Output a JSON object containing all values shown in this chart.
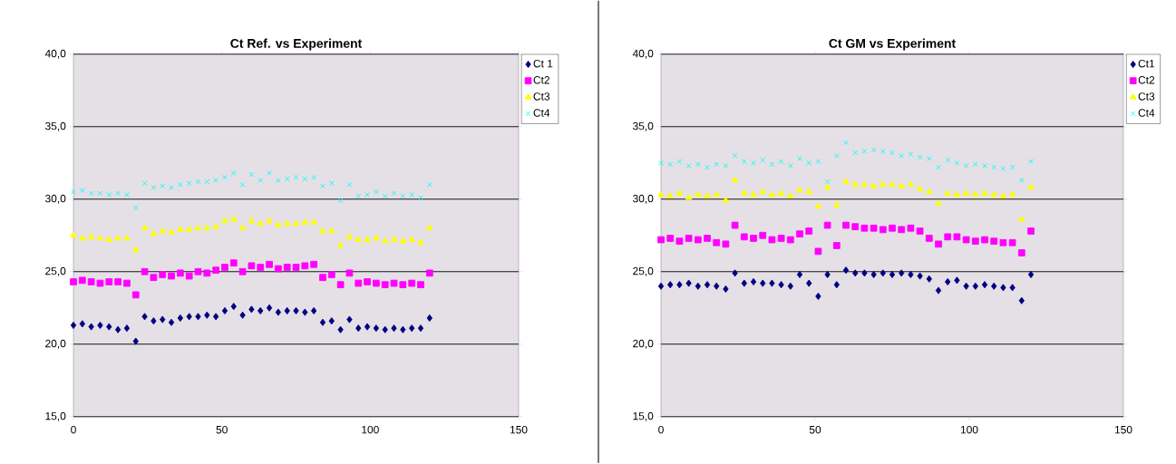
{
  "chart_data": [
    {
      "type": "scatter",
      "title": "Ct Ref. vs Experiment",
      "x": [
        0,
        3,
        6,
        9,
        12,
        15,
        18,
        21,
        24,
        27,
        30,
        33,
        36,
        39,
        42,
        45,
        48,
        51,
        54,
        57,
        60,
        63,
        66,
        69,
        72,
        75,
        78,
        81,
        84,
        87,
        90,
        93,
        96,
        99,
        102,
        105,
        108,
        111,
        114,
        117,
        120
      ],
      "xlim": [
        0,
        150
      ],
      "ylim": [
        15,
        40
      ],
      "xticks": [
        0,
        50,
        100,
        150
      ],
      "yticks": [
        {
          "value": 15,
          "label": "15,0"
        },
        {
          "value": 20,
          "label": "20,0"
        },
        {
          "value": 25,
          "label": "25,0"
        },
        {
          "value": 30,
          "label": "30,0"
        },
        {
          "value": 35,
          "label": "35,0"
        },
        {
          "value": 40,
          "label": "40,0"
        }
      ],
      "grid": "y",
      "legend": "top right",
      "series": [
        {
          "name": "Ct 1",
          "color": "#000080",
          "marker": "diamond",
          "values": [
            21.3,
            21.4,
            21.2,
            21.3,
            21.2,
            21.0,
            21.1,
            20.2,
            21.9,
            21.6,
            21.7,
            21.5,
            21.8,
            21.9,
            21.9,
            22.0,
            21.9,
            22.3,
            22.6,
            22.0,
            22.4,
            22.3,
            22.5,
            22.2,
            22.3,
            22.3,
            22.2,
            22.3,
            21.5,
            21.6,
            21.0,
            21.7,
            21.1,
            21.2,
            21.1,
            21.0,
            21.1,
            21.0,
            21.1,
            21.1,
            21.8
          ]
        },
        {
          "name": "Ct2",
          "color": "#ff00ff",
          "marker": "square",
          "values": [
            24.3,
            24.4,
            24.3,
            24.2,
            24.3,
            24.3,
            24.2,
            23.4,
            25.0,
            24.6,
            24.8,
            24.7,
            24.9,
            24.7,
            25.0,
            24.9,
            25.1,
            25.3,
            25.6,
            25.0,
            25.4,
            25.3,
            25.5,
            25.2,
            25.3,
            25.3,
            25.4,
            25.5,
            24.6,
            24.8,
            24.1,
            24.9,
            24.2,
            24.3,
            24.2,
            24.1,
            24.2,
            24.1,
            24.2,
            24.1,
            24.9
          ]
        },
        {
          "name": "Ct3",
          "color": "#ffff00",
          "marker": "triangle",
          "values": [
            27.5,
            27.3,
            27.4,
            27.3,
            27.2,
            27.3,
            27.3,
            26.5,
            28.0,
            27.6,
            27.8,
            27.7,
            27.9,
            27.9,
            28.0,
            28.0,
            28.1,
            28.5,
            28.6,
            28.0,
            28.5,
            28.3,
            28.5,
            28.2,
            28.3,
            28.3,
            28.4,
            28.4,
            27.8,
            27.8,
            26.8,
            27.4,
            27.2,
            27.2,
            27.3,
            27.1,
            27.2,
            27.1,
            27.2,
            27.0,
            28.0
          ]
        },
        {
          "name": "Ct4",
          "color": "#00ffff",
          "marker": "cross",
          "values": [
            30.5,
            30.6,
            30.4,
            30.4,
            30.3,
            30.4,
            30.3,
            29.4,
            31.1,
            30.8,
            30.9,
            30.8,
            31.0,
            31.1,
            31.2,
            31.2,
            31.3,
            31.5,
            31.8,
            31.0,
            31.7,
            31.3,
            31.8,
            31.3,
            31.4,
            31.5,
            31.4,
            31.5,
            30.9,
            31.1,
            29.9,
            31.0,
            30.2,
            30.3,
            30.5,
            30.2,
            30.4,
            30.2,
            30.3,
            30.1,
            31.0
          ]
        }
      ]
    },
    {
      "type": "scatter",
      "title": "Ct GM vs Experiment",
      "x": [
        0,
        3,
        6,
        9,
        12,
        15,
        18,
        21,
        24,
        27,
        30,
        33,
        36,
        39,
        42,
        45,
        48,
        51,
        54,
        57,
        60,
        63,
        66,
        69,
        72,
        75,
        78,
        81,
        84,
        87,
        90,
        93,
        96,
        99,
        102,
        105,
        108,
        111,
        114,
        117,
        120
      ],
      "xlim": [
        0,
        150
      ],
      "ylim": [
        15,
        40
      ],
      "xticks": [
        0,
        50,
        100,
        150
      ],
      "yticks": [
        {
          "value": 15,
          "label": "15,0"
        },
        {
          "value": 20,
          "label": "20,0"
        },
        {
          "value": 25,
          "label": "25,0"
        },
        {
          "value": 30,
          "label": "30,0"
        },
        {
          "value": 35,
          "label": "35,0"
        },
        {
          "value": 40,
          "label": "40,0"
        }
      ],
      "grid": "y",
      "legend": "top right",
      "series": [
        {
          "name": "Ct1",
          "color": "#000080",
          "marker": "diamond",
          "values": [
            24.0,
            24.1,
            24.1,
            24.2,
            24.0,
            24.1,
            24.0,
            23.8,
            24.9,
            24.2,
            24.3,
            24.2,
            24.2,
            24.1,
            24.0,
            24.8,
            24.2,
            23.3,
            24.8,
            24.1,
            25.1,
            24.9,
            24.9,
            24.8,
            24.9,
            24.8,
            24.9,
            24.8,
            24.7,
            24.5,
            23.7,
            24.3,
            24.4,
            24.0,
            24.0,
            24.1,
            24.0,
            23.9,
            23.9,
            23.0,
            24.8
          ]
        },
        {
          "name": "Ct2",
          "color": "#ff00ff",
          "marker": "square",
          "values": [
            27.2,
            27.3,
            27.1,
            27.3,
            27.2,
            27.3,
            27.0,
            26.9,
            28.2,
            27.4,
            27.3,
            27.5,
            27.2,
            27.3,
            27.2,
            27.6,
            27.8,
            26.4,
            28.2,
            26.8,
            28.2,
            28.1,
            28.0,
            28.0,
            27.9,
            28.0,
            27.9,
            28.0,
            27.8,
            27.3,
            26.9,
            27.4,
            27.4,
            27.2,
            27.1,
            27.2,
            27.1,
            27.0,
            27.0,
            26.3,
            27.8
          ]
        },
        {
          "name": "Ct3",
          "color": "#ffff00",
          "marker": "triangle",
          "values": [
            30.3,
            30.2,
            30.4,
            30.1,
            30.3,
            30.2,
            30.3,
            29.9,
            31.3,
            30.4,
            30.3,
            30.5,
            30.3,
            30.4,
            30.2,
            30.6,
            30.5,
            29.5,
            30.8,
            29.6,
            31.2,
            31.0,
            31.0,
            30.9,
            31.0,
            31.0,
            30.9,
            31.0,
            30.7,
            30.5,
            29.7,
            30.4,
            30.3,
            30.4,
            30.3,
            30.4,
            30.3,
            30.2,
            30.3,
            28.6,
            30.8
          ]
        },
        {
          "name": "Ct4",
          "color": "#00ffff",
          "marker": "cross",
          "values": [
            32.5,
            32.4,
            32.6,
            32.3,
            32.4,
            32.2,
            32.4,
            32.3,
            33.0,
            32.6,
            32.5,
            32.7,
            32.4,
            32.6,
            32.3,
            32.8,
            32.5,
            32.6,
            31.2,
            33.0,
            33.9,
            33.2,
            33.3,
            33.4,
            33.3,
            33.2,
            33.0,
            33.1,
            32.9,
            32.8,
            32.2,
            32.7,
            32.5,
            32.3,
            32.4,
            32.3,
            32.2,
            32.1,
            32.2,
            31.3,
            32.6
          ]
        }
      ]
    }
  ]
}
